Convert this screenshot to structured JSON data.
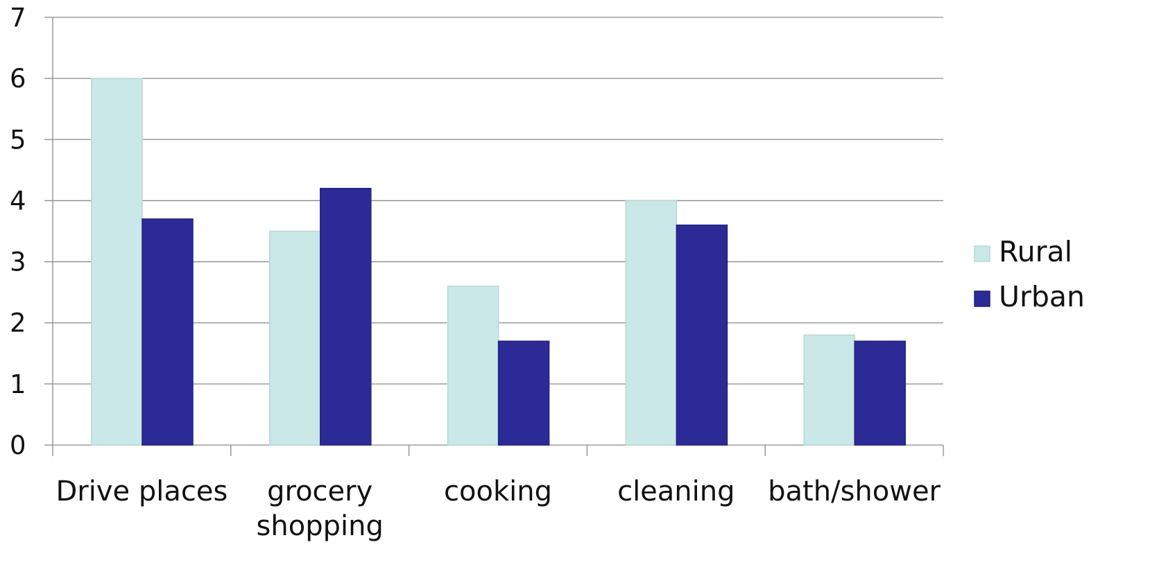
{
  "chart_data": {
    "type": "bar",
    "title": "",
    "xlabel": "",
    "ylabel": "",
    "categories": [
      "Drive places",
      "grocery shopping",
      "cooking",
      "cleaning",
      "bath/shower"
    ],
    "series": [
      {
        "name": "Rural",
        "color": "#c9e8e7",
        "values": [
          6.0,
          3.5,
          2.6,
          4.0,
          1.8
        ]
      },
      {
        "name": "Urban",
        "color": "#2b2a96",
        "values": [
          3.7,
          4.2,
          1.7,
          3.6,
          1.7
        ]
      }
    ],
    "ylim": [
      0,
      7
    ],
    "yticks": [
      "0",
      "1",
      "2",
      "3",
      "4",
      "5",
      "6",
      "7"
    ],
    "grid": true,
    "legend_position": "right"
  }
}
